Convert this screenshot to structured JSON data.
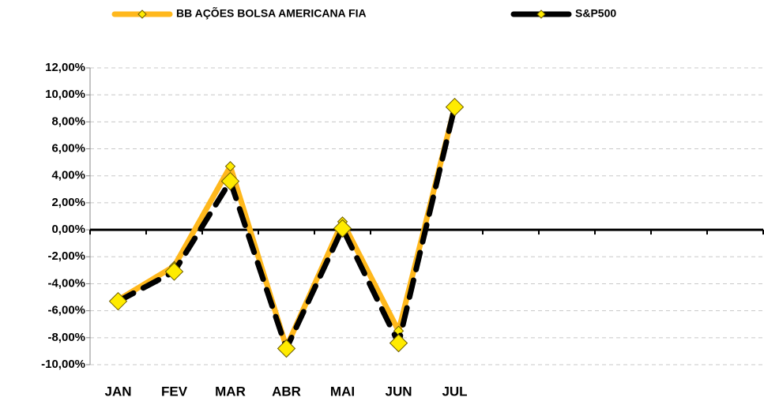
{
  "chart_data": {
    "type": "line",
    "categories": [
      "JAN",
      "FEV",
      "MAR",
      "ABR",
      "MAI",
      "JUN",
      "JUL",
      null,
      null,
      null,
      null,
      null
    ],
    "series": [
      {
        "name": "BB AÇÕES BOLSA AMERICANA FIA",
        "color": "#ffb81c",
        "marker_color": "#ffeb00",
        "values": [
          -5.2,
          -2.7,
          4.7,
          -8.7,
          0.6,
          -7.5,
          9.1,
          null,
          null,
          null,
          null,
          null
        ]
      },
      {
        "name": "S&P500",
        "color": "#000000",
        "marker_color": "#ffeb00",
        "values": [
          -5.3,
          -3.1,
          3.6,
          -8.8,
          0.1,
          -8.4,
          9.1,
          null,
          null,
          null,
          null,
          null
        ]
      }
    ],
    "ylim": [
      -10,
      12
    ],
    "yticks": [
      {
        "value": -10,
        "label": "-10,00%"
      },
      {
        "value": -8,
        "label": "-8,00%"
      },
      {
        "value": -6,
        "label": "-6,00%"
      },
      {
        "value": -4,
        "label": "-4,00%"
      },
      {
        "value": -2,
        "label": "-2,00%"
      },
      {
        "value": 0,
        "label": "0,00%"
      },
      {
        "value": 2,
        "label": "2,00%"
      },
      {
        "value": 4,
        "label": "4,00%"
      },
      {
        "value": 6,
        "label": "6,00%"
      },
      {
        "value": 8,
        "label": "8,00%"
      },
      {
        "value": 10,
        "label": "10,00%"
      },
      {
        "value": 12,
        "label": "12,00%"
      }
    ],
    "grid": true,
    "legend": "top"
  }
}
